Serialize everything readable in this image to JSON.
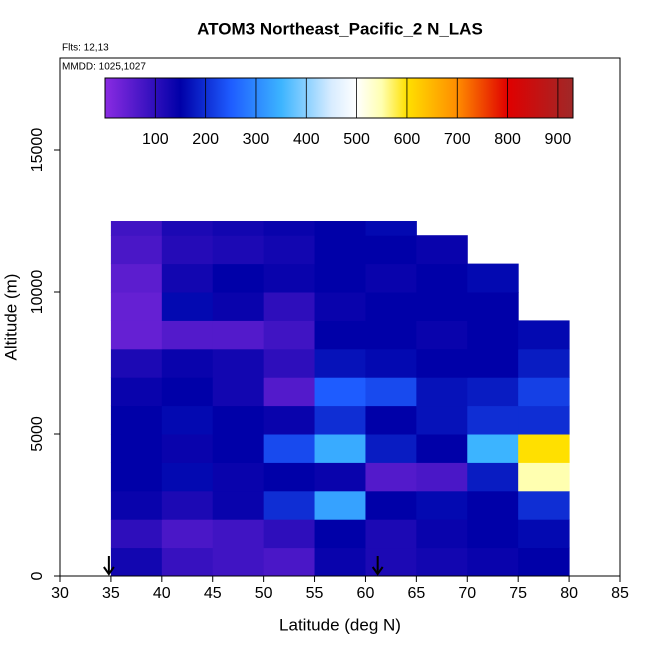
{
  "chart_data": {
    "type": "heatmap",
    "title": "ATOM3 Northeast_Pacific_2 N_LAS",
    "annotations": [
      "Flts: 12,13",
      "MMDD: 1025,1027"
    ],
    "xlabel": "Latitude (deg N)",
    "ylabel": "Altitude (m)",
    "xlim": [
      30,
      85
    ],
    "ylim": [
      0,
      18240
    ],
    "xticks": [
      30,
      35,
      40,
      45,
      50,
      55,
      60,
      65,
      70,
      75,
      80,
      85
    ],
    "yticks": [
      0,
      5000,
      10000,
      15000
    ],
    "x_edges": [
      35,
      40,
      45,
      50,
      55,
      60,
      65,
      70,
      75,
      80
    ],
    "y_edges": [
      0,
      1000,
      2000,
      3000,
      4000,
      5000,
      6000,
      7000,
      8000,
      9000,
      10000,
      11000,
      12000,
      12500
    ],
    "values": [
      [
        130,
        90,
        80,
        70,
        140,
        120,
        130,
        140,
        150
      ],
      [
        100,
        70,
        80,
        100,
        150,
        120,
        140,
        150,
        160
      ],
      [
        140,
        120,
        140,
        200,
        330,
        150,
        160,
        150,
        200
      ],
      [
        150,
        160,
        140,
        150,
        140,
        60,
        70,
        180,
        550
      ],
      [
        150,
        140,
        150,
        230,
        340,
        180,
        150,
        350,
        600
      ],
      [
        150,
        160,
        150,
        140,
        200,
        150,
        170,
        200,
        200
      ],
      [
        140,
        150,
        130,
        60,
        250,
        230,
        170,
        180,
        220
      ],
      [
        120,
        140,
        130,
        100,
        170,
        160,
        150,
        150,
        180
      ],
      [
        40,
        60,
        60,
        80,
        150,
        150,
        140,
        150,
        160
      ],
      [
        40,
        160,
        140,
        100,
        140,
        150,
        150,
        150,
        null
      ],
      [
        50,
        130,
        150,
        140,
        150,
        140,
        150,
        160,
        null
      ],
      [
        70,
        110,
        120,
        130,
        150,
        150,
        140,
        null,
        null
      ],
      [
        80,
        120,
        130,
        140,
        150,
        160,
        null,
        null,
        null
      ]
    ],
    "colorbar_lim": [
      0,
      930
    ],
    "colorbar_ticks": [
      100,
      200,
      300,
      400,
      500,
      600,
      700,
      800,
      900
    ],
    "colorscale": [
      [
        0,
        "#8a2be2"
      ],
      [
        150,
        "#0000a8"
      ],
      [
        250,
        "#1e5cff"
      ],
      [
        350,
        "#3cb4ff"
      ],
      [
        450,
        "#d8ecff"
      ],
      [
        500,
        "#ffffff"
      ],
      [
        550,
        "#ffffb0"
      ],
      [
        600,
        "#ffe000"
      ],
      [
        700,
        "#ff8c00"
      ],
      [
        800,
        "#e00000"
      ],
      [
        930,
        "#a02828"
      ]
    ],
    "arrows_x": [
      34.8,
      61.2
    ]
  }
}
